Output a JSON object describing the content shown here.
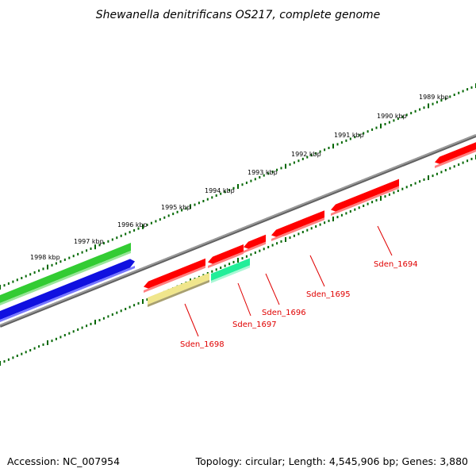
{
  "title": "Shewanella denitrificans OS217, complete genome",
  "footer": {
    "accession": "Accession: NC_007954",
    "summary": "Topology: circular; Length: 4,545,906 bp; Genes: 3,880"
  },
  "kbp_labels": [
    "1989 kbp",
    "1990 kbp",
    "1991 kbp",
    "1992 kbp",
    "1993 kbp",
    "1994 kbp",
    "1995 kbp",
    "1996 kbp",
    "1997 kbp",
    "1998 kbp"
  ],
  "gene_labels": [
    "Sden_1694",
    "Sden_1695",
    "Sden_1696",
    "Sden_1697",
    "Sden_1698"
  ],
  "colors": {
    "backbone": "#808080",
    "forward_gene": "#ff0000",
    "green_feature": "#33cc33",
    "blue_feature": "#1010e0",
    "cyan_gene": "#22ee99",
    "yellow_gene": "#f0e68c",
    "tick": "#006600",
    "label": "#e00000"
  }
}
